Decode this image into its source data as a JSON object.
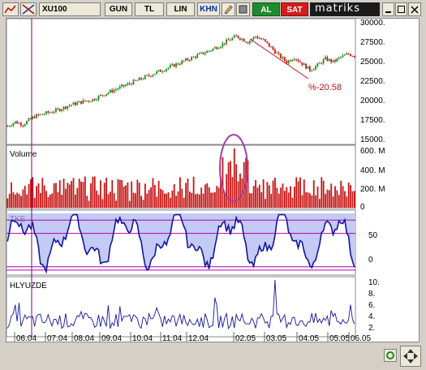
{
  "toolbar": {
    "symbol": "XU100",
    "buttons": [
      "GUN",
      "TL",
      "LIN",
      "KHN"
    ],
    "al_label": "AL",
    "sat_label": "SAT",
    "logo": "matriks"
  },
  "colors": {
    "candle_up": "#1a8a1a",
    "candle_down": "#d01010",
    "volume_bar": "#c81414",
    "indicator_line": "#1414a0",
    "indicator_fill": "#aab4f0",
    "guide_line": "#b000b0",
    "ellipse": "#a040a0"
  },
  "panels": {
    "price": {
      "y_labels": [
        "30000.",
        "27500.",
        "25000.",
        "22500.",
        "20000.",
        "17500.",
        "15000."
      ],
      "annotation": "%-20.58"
    },
    "volume": {
      "title": "Volume",
      "y_labels": [
        "600. M",
        "400. M",
        "200. M",
        "0"
      ]
    },
    "tke": {
      "title": "TKE",
      "y_labels": [
        "50",
        "0"
      ]
    },
    "hlyuzde": {
      "title": "HLYUZDE",
      "y_labels": [
        "10.",
        "8.",
        "6.",
        "4.",
        "2."
      ]
    }
  },
  "x_axis": {
    "labels": [
      "06.04",
      "07.04",
      "08.04",
      "09.04",
      "10.04",
      "11.04",
      "12.04",
      "02.05",
      "03.05",
      "04.05",
      "05.05",
      "06.05"
    ]
  },
  "chart_data": {
    "type": "line",
    "price_range": [
      15000,
      30000
    ],
    "price_points": [
      [
        0,
        17000
      ],
      [
        4,
        17500
      ],
      [
        8,
        17200
      ],
      [
        14,
        18200
      ],
      [
        20,
        18600
      ],
      [
        26,
        19000
      ],
      [
        32,
        19600
      ],
      [
        38,
        20000
      ],
      [
        44,
        20300
      ],
      [
        50,
        21000
      ],
      [
        56,
        21600
      ],
      [
        62,
        22200
      ],
      [
        68,
        22800
      ],
      [
        74,
        23400
      ],
      [
        80,
        24000
      ],
      [
        86,
        24600
      ],
      [
        92,
        25200
      ],
      [
        98,
        25800
      ],
      [
        104,
        26400
      ],
      [
        110,
        27100
      ],
      [
        114,
        27700
      ],
      [
        118,
        28200
      ],
      [
        120,
        28000
      ],
      [
        124,
        27500
      ],
      [
        128,
        28200
      ],
      [
        132,
        27700
      ],
      [
        136,
        26800
      ],
      [
        140,
        25800
      ],
      [
        144,
        25000
      ],
      [
        148,
        25600
      ],
      [
        152,
        24800
      ],
      [
        156,
        24000
      ],
      [
        160,
        24600
      ],
      [
        164,
        25400
      ],
      [
        168,
        25000
      ],
      [
        172,
        25600
      ],
      [
        176,
        26000
      ],
      [
        180,
        25700
      ]
    ],
    "volume_range": [
      0,
      600
    ],
    "volume_peak": 600,
    "tke_range": [
      -10,
      80
    ],
    "tke_levels": [
      70,
      50,
      0,
      -5
    ],
    "hlyuzde_range": [
      0,
      10
    ]
  }
}
